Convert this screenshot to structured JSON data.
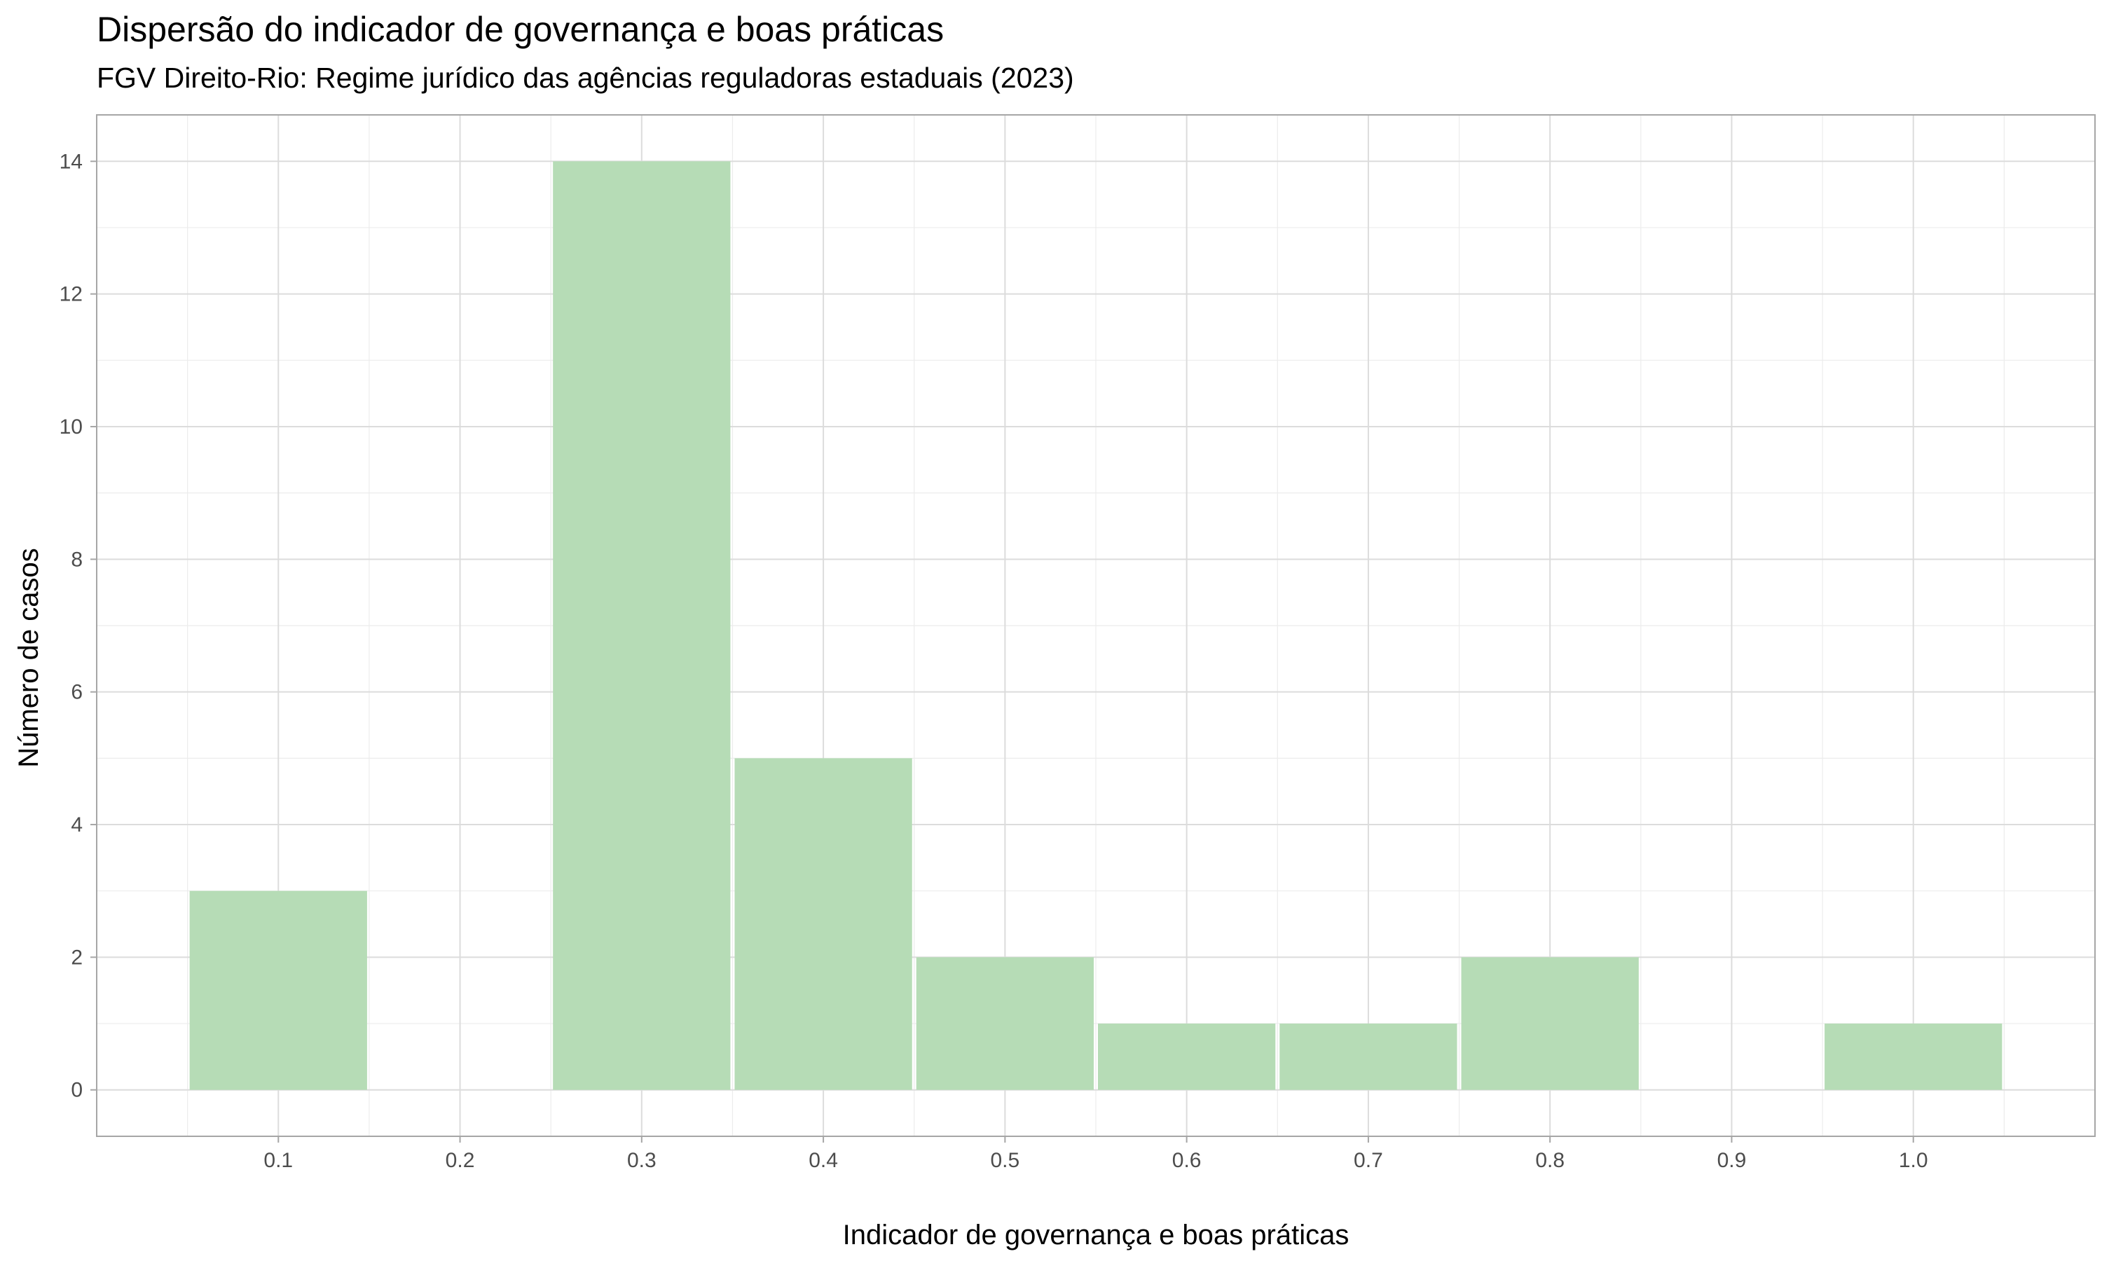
{
  "chart_data": {
    "type": "bar",
    "title": "Dispersão do indicador de governança e boas práticas",
    "subtitle": "FGV Direito-Rio: Regime jurídico das agências reguladoras estaduais (2023)",
    "xlabel": "Indicador de governança e boas práticas",
    "ylabel": "Número de casos",
    "x": [
      0.1,
      0.3,
      0.4,
      0.5,
      0.6,
      0.7,
      0.8,
      1.0
    ],
    "values": [
      3,
      14,
      5,
      2,
      1,
      1,
      2,
      1
    ],
    "bin_width": 0.1,
    "xlim": [
      0.0,
      1.1
    ],
    "ylim": [
      -0.7,
      14.7
    ],
    "x_ticks": [
      "0.1",
      "0.2",
      "0.3",
      "0.4",
      "0.5",
      "0.6",
      "0.7",
      "0.8",
      "0.9",
      "1.0"
    ],
    "y_ticks": [
      "0",
      "2",
      "4",
      "6",
      "8",
      "10",
      "12",
      "14"
    ],
    "grid": true,
    "bar_color": "#b6dcb6",
    "panel_border_color": "#a6a6a6"
  }
}
